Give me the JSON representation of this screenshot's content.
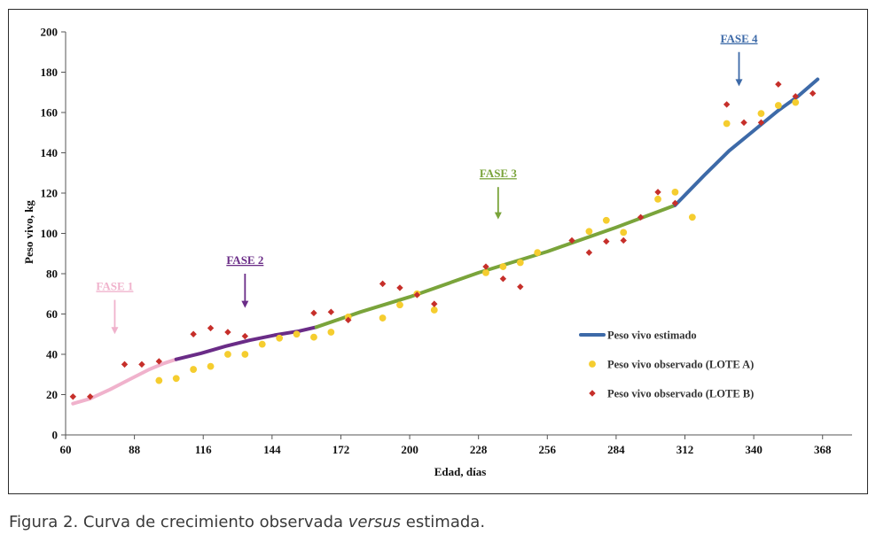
{
  "chart_data": {
    "type": "scatter",
    "xlabel": "Edad, días",
    "ylabel": "Peso vivo, kg",
    "xlim": [
      60,
      380
    ],
    "ylim": [
      0,
      200
    ],
    "x_ticks": [
      60,
      88,
      116,
      144,
      172,
      200,
      228,
      256,
      284,
      312,
      340,
      368
    ],
    "y_ticks": [
      0,
      20,
      40,
      60,
      80,
      100,
      120,
      140,
      160,
      180,
      200
    ],
    "grid": false,
    "legend_position": "bottom-right",
    "phases": [
      {
        "label": "FASE 1",
        "color": "#f0b2cc",
        "arrow_x": 80,
        "arrow_from": 67,
        "arrow_to": 50
      },
      {
        "label": "FASE 2",
        "color": "#6a2c87",
        "arrow_x": 133,
        "arrow_from": 80,
        "arrow_to": 63
      },
      {
        "label": "FASE 3",
        "color": "#7aa43b",
        "arrow_x": 236,
        "arrow_from": 123,
        "arrow_to": 107
      },
      {
        "label": "FASE 4",
        "color": "#3d6aa8",
        "arrow_x": 334,
        "arrow_from": 190,
        "arrow_to": 173
      }
    ],
    "series": [
      {
        "name": "Peso vivo estimado",
        "kind": "line",
        "segments": [
          {
            "color": "#f0b2cc",
            "points": [
              [
                63,
                15.5
              ],
              [
                70,
                18
              ],
              [
                78,
                22.5
              ],
              [
                86,
                27.5
              ],
              [
                94,
                32.5
              ],
              [
                100,
                35.5
              ],
              [
                105,
                37.5
              ]
            ]
          },
          {
            "color": "#6a2c87",
            "points": [
              [
                105,
                37.5
              ],
              [
                115,
                40.5
              ],
              [
                125,
                44
              ],
              [
                135,
                47
              ],
              [
                145,
                49.5
              ],
              [
                155,
                51.5
              ],
              [
                162,
                53.5
              ]
            ]
          },
          {
            "color": "#7aa43b",
            "points": [
              [
                162,
                53.5
              ],
              [
                180,
                61
              ],
              [
                200,
                68.5
              ],
              [
                228,
                80.5
              ],
              [
                256,
                91
              ],
              [
                284,
                103
              ],
              [
                308,
                114
              ]
            ]
          },
          {
            "color": "#3d6aa8",
            "points": [
              [
                308,
                114
              ],
              [
                312,
                119
              ],
              [
                320,
                129
              ],
              [
                330,
                141
              ],
              [
                340,
                151
              ],
              [
                350,
                161
              ],
              [
                358,
                168
              ],
              [
                366,
                176.5
              ]
            ]
          }
        ]
      },
      {
        "name": "Peso vivo observado (LOTE A)",
        "kind": "scatter",
        "marker": "circle",
        "color": "#f5cd2f",
        "points": [
          [
            98,
            27
          ],
          [
            105,
            28
          ],
          [
            112,
            32.5
          ],
          [
            119,
            34
          ],
          [
            126,
            40
          ],
          [
            133,
            40
          ],
          [
            140,
            45
          ],
          [
            147,
            48
          ],
          [
            154,
            50
          ],
          [
            161,
            48.5
          ],
          [
            168,
            51
          ],
          [
            175,
            58.5
          ],
          [
            189,
            58
          ],
          [
            196,
            64.5
          ],
          [
            203,
            70
          ],
          [
            210,
            62
          ],
          [
            231,
            80.5
          ],
          [
            238,
            83.5
          ],
          [
            245,
            85.5
          ],
          [
            252,
            90.5
          ],
          [
            273,
            101
          ],
          [
            280,
            106.5
          ],
          [
            287,
            100.5
          ],
          [
            301,
            117
          ],
          [
            308,
            120.5
          ],
          [
            315,
            108
          ],
          [
            329,
            154.5
          ],
          [
            343,
            159.5
          ],
          [
            350,
            163.5
          ],
          [
            357,
            165
          ]
        ]
      },
      {
        "name": "Peso vivo observado (LOTE B)",
        "kind": "scatter",
        "marker": "diamond",
        "color": "#c62f2a",
        "points": [
          [
            63,
            19
          ],
          [
            70,
            19
          ],
          [
            84,
            35
          ],
          [
            91,
            35
          ],
          [
            98,
            36.5
          ],
          [
            112,
            50
          ],
          [
            119,
            53
          ],
          [
            126,
            51
          ],
          [
            133,
            49
          ],
          [
            161,
            60.5
          ],
          [
            168,
            61
          ],
          [
            175,
            57
          ],
          [
            189,
            75
          ],
          [
            196,
            73
          ],
          [
            203,
            69.5
          ],
          [
            210,
            65
          ],
          [
            231,
            83.5
          ],
          [
            238,
            77.5
          ],
          [
            245,
            73.5
          ],
          [
            266,
            96.5
          ],
          [
            273,
            90.5
          ],
          [
            280,
            96
          ],
          [
            287,
            96.5
          ],
          [
            294,
            108
          ],
          [
            301,
            120.5
          ],
          [
            308,
            115
          ],
          [
            329,
            164
          ],
          [
            336,
            155
          ],
          [
            343,
            155
          ],
          [
            350,
            174
          ],
          [
            357,
            168
          ],
          [
            364,
            169.5
          ]
        ]
      }
    ]
  },
  "caption": {
    "prefix": "Figura 2. Curva de crecimiento observada ",
    "emphasis": "versus",
    "suffix": " estimada."
  }
}
